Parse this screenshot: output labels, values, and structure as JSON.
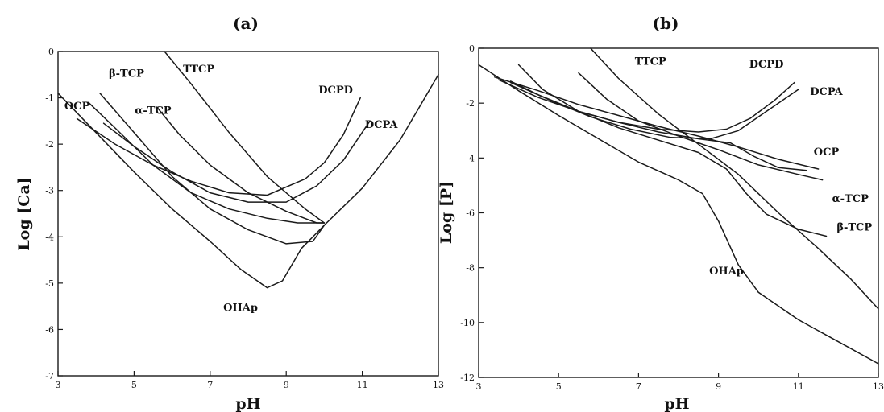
{
  "chart_data": [
    {
      "type": "line",
      "title": "(a)",
      "xlabel": "pH",
      "ylabel": "Log [Ca]",
      "xlim": [
        3,
        13
      ],
      "ylim": [
        -7,
        0
      ],
      "xticks": [
        3,
        5,
        7,
        9,
        11,
        13
      ],
      "yticks": [
        0,
        -1,
        -2,
        -3,
        -4,
        -5,
        -6,
        -7
      ],
      "series": [
        {
          "name": "TTCP",
          "points": [
            [
              5.8,
              0
            ],
            [
              6.5,
              -0.7
            ],
            [
              7.5,
              -1.75
            ],
            [
              8.5,
              -2.7
            ],
            [
              9.5,
              -3.4
            ],
            [
              10.0,
              -3.7
            ]
          ]
        },
        {
          "name": "DCPD",
          "points": [
            [
              3.5,
              -1.45
            ],
            [
              4.5,
              -2.0
            ],
            [
              5.5,
              -2.45
            ],
            [
              6.5,
              -2.8
            ],
            [
              7.5,
              -3.05
            ],
            [
              8.5,
              -3.1
            ],
            [
              9.5,
              -2.75
            ],
            [
              10.0,
              -2.4
            ],
            [
              10.5,
              -1.8
            ],
            [
              10.95,
              -1.0
            ]
          ]
        },
        {
          "name": "DCPA",
          "points": [
            [
              4.2,
              -1.55
            ],
            [
              5.0,
              -2.05
            ],
            [
              6.0,
              -2.6
            ],
            [
              7.0,
              -3.05
            ],
            [
              8.0,
              -3.25
            ],
            [
              9.0,
              -3.25
            ],
            [
              9.8,
              -2.9
            ],
            [
              10.5,
              -2.35
            ],
            [
              11.2,
              -1.5
            ]
          ]
        },
        {
          "name": "OCP",
          "points": [
            [
              3.8,
              -1.1
            ],
            [
              4.5,
              -1.65
            ],
            [
              5.5,
              -2.45
            ],
            [
              6.5,
              -3.05
            ],
            [
              7.5,
              -3.4
            ],
            [
              8.5,
              -3.6
            ],
            [
              9.3,
              -3.7
            ],
            [
              10.0,
              -3.7
            ]
          ]
        },
        {
          "name": "β-TCP",
          "points": [
            [
              4.1,
              -0.9
            ],
            [
              5.0,
              -1.75
            ],
            [
              6.0,
              -2.7
            ],
            [
              7.0,
              -3.4
            ],
            [
              8.0,
              -3.85
            ],
            [
              9.0,
              -4.15
            ],
            [
              9.7,
              -4.1
            ],
            [
              10.0,
              -3.75
            ]
          ]
        },
        {
          "name": "α-TCP",
          "points": [
            [
              5.6,
              -1.2
            ],
            [
              6.2,
              -1.8
            ],
            [
              7.0,
              -2.45
            ],
            [
              8.0,
              -3.05
            ],
            [
              9.0,
              -3.45
            ],
            [
              9.8,
              -3.7
            ],
            [
              10.0,
              -3.7
            ]
          ]
        },
        {
          "name": "OHAp",
          "points": [
            [
              3,
              -0.9
            ],
            [
              4,
              -1.75
            ],
            [
              5,
              -2.6
            ],
            [
              6,
              -3.4
            ],
            [
              7,
              -4.1
            ],
            [
              7.8,
              -4.7
            ],
            [
              8.5,
              -5.1
            ],
            [
              8.9,
              -4.95
            ],
            [
              9.4,
              -4.25
            ],
            [
              10,
              -3.75
            ],
            [
              11,
              -2.95
            ],
            [
              12,
              -1.9
            ],
            [
              13,
              -0.5
            ]
          ]
        }
      ],
      "curve_labels": [
        {
          "text": "OCP",
          "x": 3.5,
          "y": -1.25
        },
        {
          "text": "β-TCP",
          "x": 4.8,
          "y": -0.55
        },
        {
          "text": "TTCP",
          "x": 6.7,
          "y": -0.45
        },
        {
          "text": "α-TCP",
          "x": 5.5,
          "y": -1.35
        },
        {
          "text": "DCPD",
          "x": 10.3,
          "y": -0.9
        },
        {
          "text": "DCPA",
          "x": 11.5,
          "y": -1.65
        },
        {
          "text": "OHAp",
          "x": 7.8,
          "y": -5.6
        }
      ]
    },
    {
      "type": "line",
      "title": "(b)",
      "xlabel": "pH",
      "ylabel": "Log [P]",
      "xlim": [
        3,
        13
      ],
      "ylim": [
        -12,
        0
      ],
      "xticks": [
        3,
        5,
        7,
        9,
        11,
        13
      ],
      "yticks": [
        0,
        -2,
        -4,
        -6,
        -8,
        -10,
        -12
      ],
      "series": [
        {
          "name": "TTCP",
          "points": [
            [
              5.8,
              0
            ],
            [
              6.5,
              -1.1
            ],
            [
              7.5,
              -2.4
            ],
            [
              8.5,
              -3.5
            ],
            [
              9.5,
              -4.6
            ],
            [
              10.5,
              -6.0
            ],
            [
              11.5,
              -7.3
            ],
            [
              12.3,
              -8.4
            ],
            [
              13,
              -9.5
            ]
          ]
        },
        {
          "name": "DCPD",
          "points": [
            [
              3.5,
              -1.15
            ],
            [
              4.5,
              -1.8
            ],
            [
              5.5,
              -2.3
            ],
            [
              6.5,
              -2.7
            ],
            [
              7.5,
              -2.95
            ],
            [
              8.5,
              -3.05
            ],
            [
              9.2,
              -2.95
            ],
            [
              9.8,
              -2.55
            ],
            [
              10.4,
              -1.9
            ],
            [
              10.9,
              -1.25
            ]
          ]
        },
        {
          "name": "DCPA",
          "points": [
            [
              3.8,
              -1.25
            ],
            [
              4.8,
              -1.9
            ],
            [
              5.8,
              -2.5
            ],
            [
              6.8,
              -2.95
            ],
            [
              7.8,
              -3.25
            ],
            [
              8.8,
              -3.3
            ],
            [
              9.5,
              -3.0
            ],
            [
              10.2,
              -2.3
            ],
            [
              11.0,
              -1.5
            ]
          ]
        },
        {
          "name": "OCP",
          "points": [
            [
              3.8,
              -1.2
            ],
            [
              4.5,
              -1.7
            ],
            [
              5.5,
              -2.3
            ],
            [
              6.5,
              -2.7
            ],
            [
              7.5,
              -3.05
            ],
            [
              8.5,
              -3.3
            ],
            [
              9.3,
              -3.45
            ],
            [
              9.9,
              -3.95
            ],
            [
              10.5,
              -4.35
            ],
            [
              11.2,
              -4.45
            ]
          ]
        },
        {
          "name": "α-TCP",
          "points": [
            [
              5.5,
              -0.9
            ],
            [
              6.2,
              -1.85
            ],
            [
              7.0,
              -2.65
            ],
            [
              8.0,
              -3.2
            ],
            [
              9.0,
              -3.7
            ],
            [
              10.0,
              -4.25
            ],
            [
              11.0,
              -4.6
            ],
            [
              11.6,
              -4.8
            ]
          ]
        },
        {
          "name": "β-TCP",
          "points": [
            [
              4.0,
              -0.6
            ],
            [
              4.6,
              -1.5
            ],
            [
              5.5,
              -2.3
            ],
            [
              6.5,
              -2.9
            ],
            [
              7.5,
              -3.35
            ],
            [
              8.5,
              -3.8
            ],
            [
              9.2,
              -4.4
            ],
            [
              9.7,
              -5.3
            ],
            [
              10.2,
              -6.05
            ],
            [
              11.0,
              -6.6
            ],
            [
              11.7,
              -6.85
            ]
          ]
        },
        {
          "name": "OHAp",
          "points": [
            [
              3,
              -0.6
            ],
            [
              4,
              -1.55
            ],
            [
              5,
              -2.45
            ],
            [
              6,
              -3.3
            ],
            [
              7,
              -4.15
            ],
            [
              8,
              -4.8
            ],
            [
              8.6,
              -5.3
            ],
            [
              9.0,
              -6.3
            ],
            [
              9.5,
              -7.9
            ],
            [
              10,
              -8.9
            ],
            [
              11,
              -9.9
            ],
            [
              12,
              -10.7
            ],
            [
              13,
              -11.5
            ]
          ]
        },
        {
          "name": "",
          "points": [
            [
              3.4,
              -1.05
            ],
            [
              4.5,
              -1.55
            ],
            [
              5.5,
              -2.05
            ],
            [
              6.5,
              -2.45
            ],
            [
              7.5,
              -2.85
            ],
            [
              8.5,
              -3.2
            ],
            [
              9.5,
              -3.6
            ],
            [
              10.5,
              -4.05
            ],
            [
              11.5,
              -4.4
            ]
          ]
        }
      ],
      "curve_labels": [
        {
          "text": "TTCP",
          "x": 7.3,
          "y": -0.6
        },
        {
          "text": "DCPD",
          "x": 10.2,
          "y": -0.7
        },
        {
          "text": "DCPA",
          "x": 11.7,
          "y": -1.7
        },
        {
          "text": "OCP",
          "x": 11.7,
          "y": -3.9
        },
        {
          "text": "α-TCP",
          "x": 12.3,
          "y": -5.6
        },
        {
          "text": "β-TCP",
          "x": 12.4,
          "y": -6.65
        },
        {
          "text": "OHAp",
          "x": 9.2,
          "y": -8.25
        }
      ]
    }
  ]
}
